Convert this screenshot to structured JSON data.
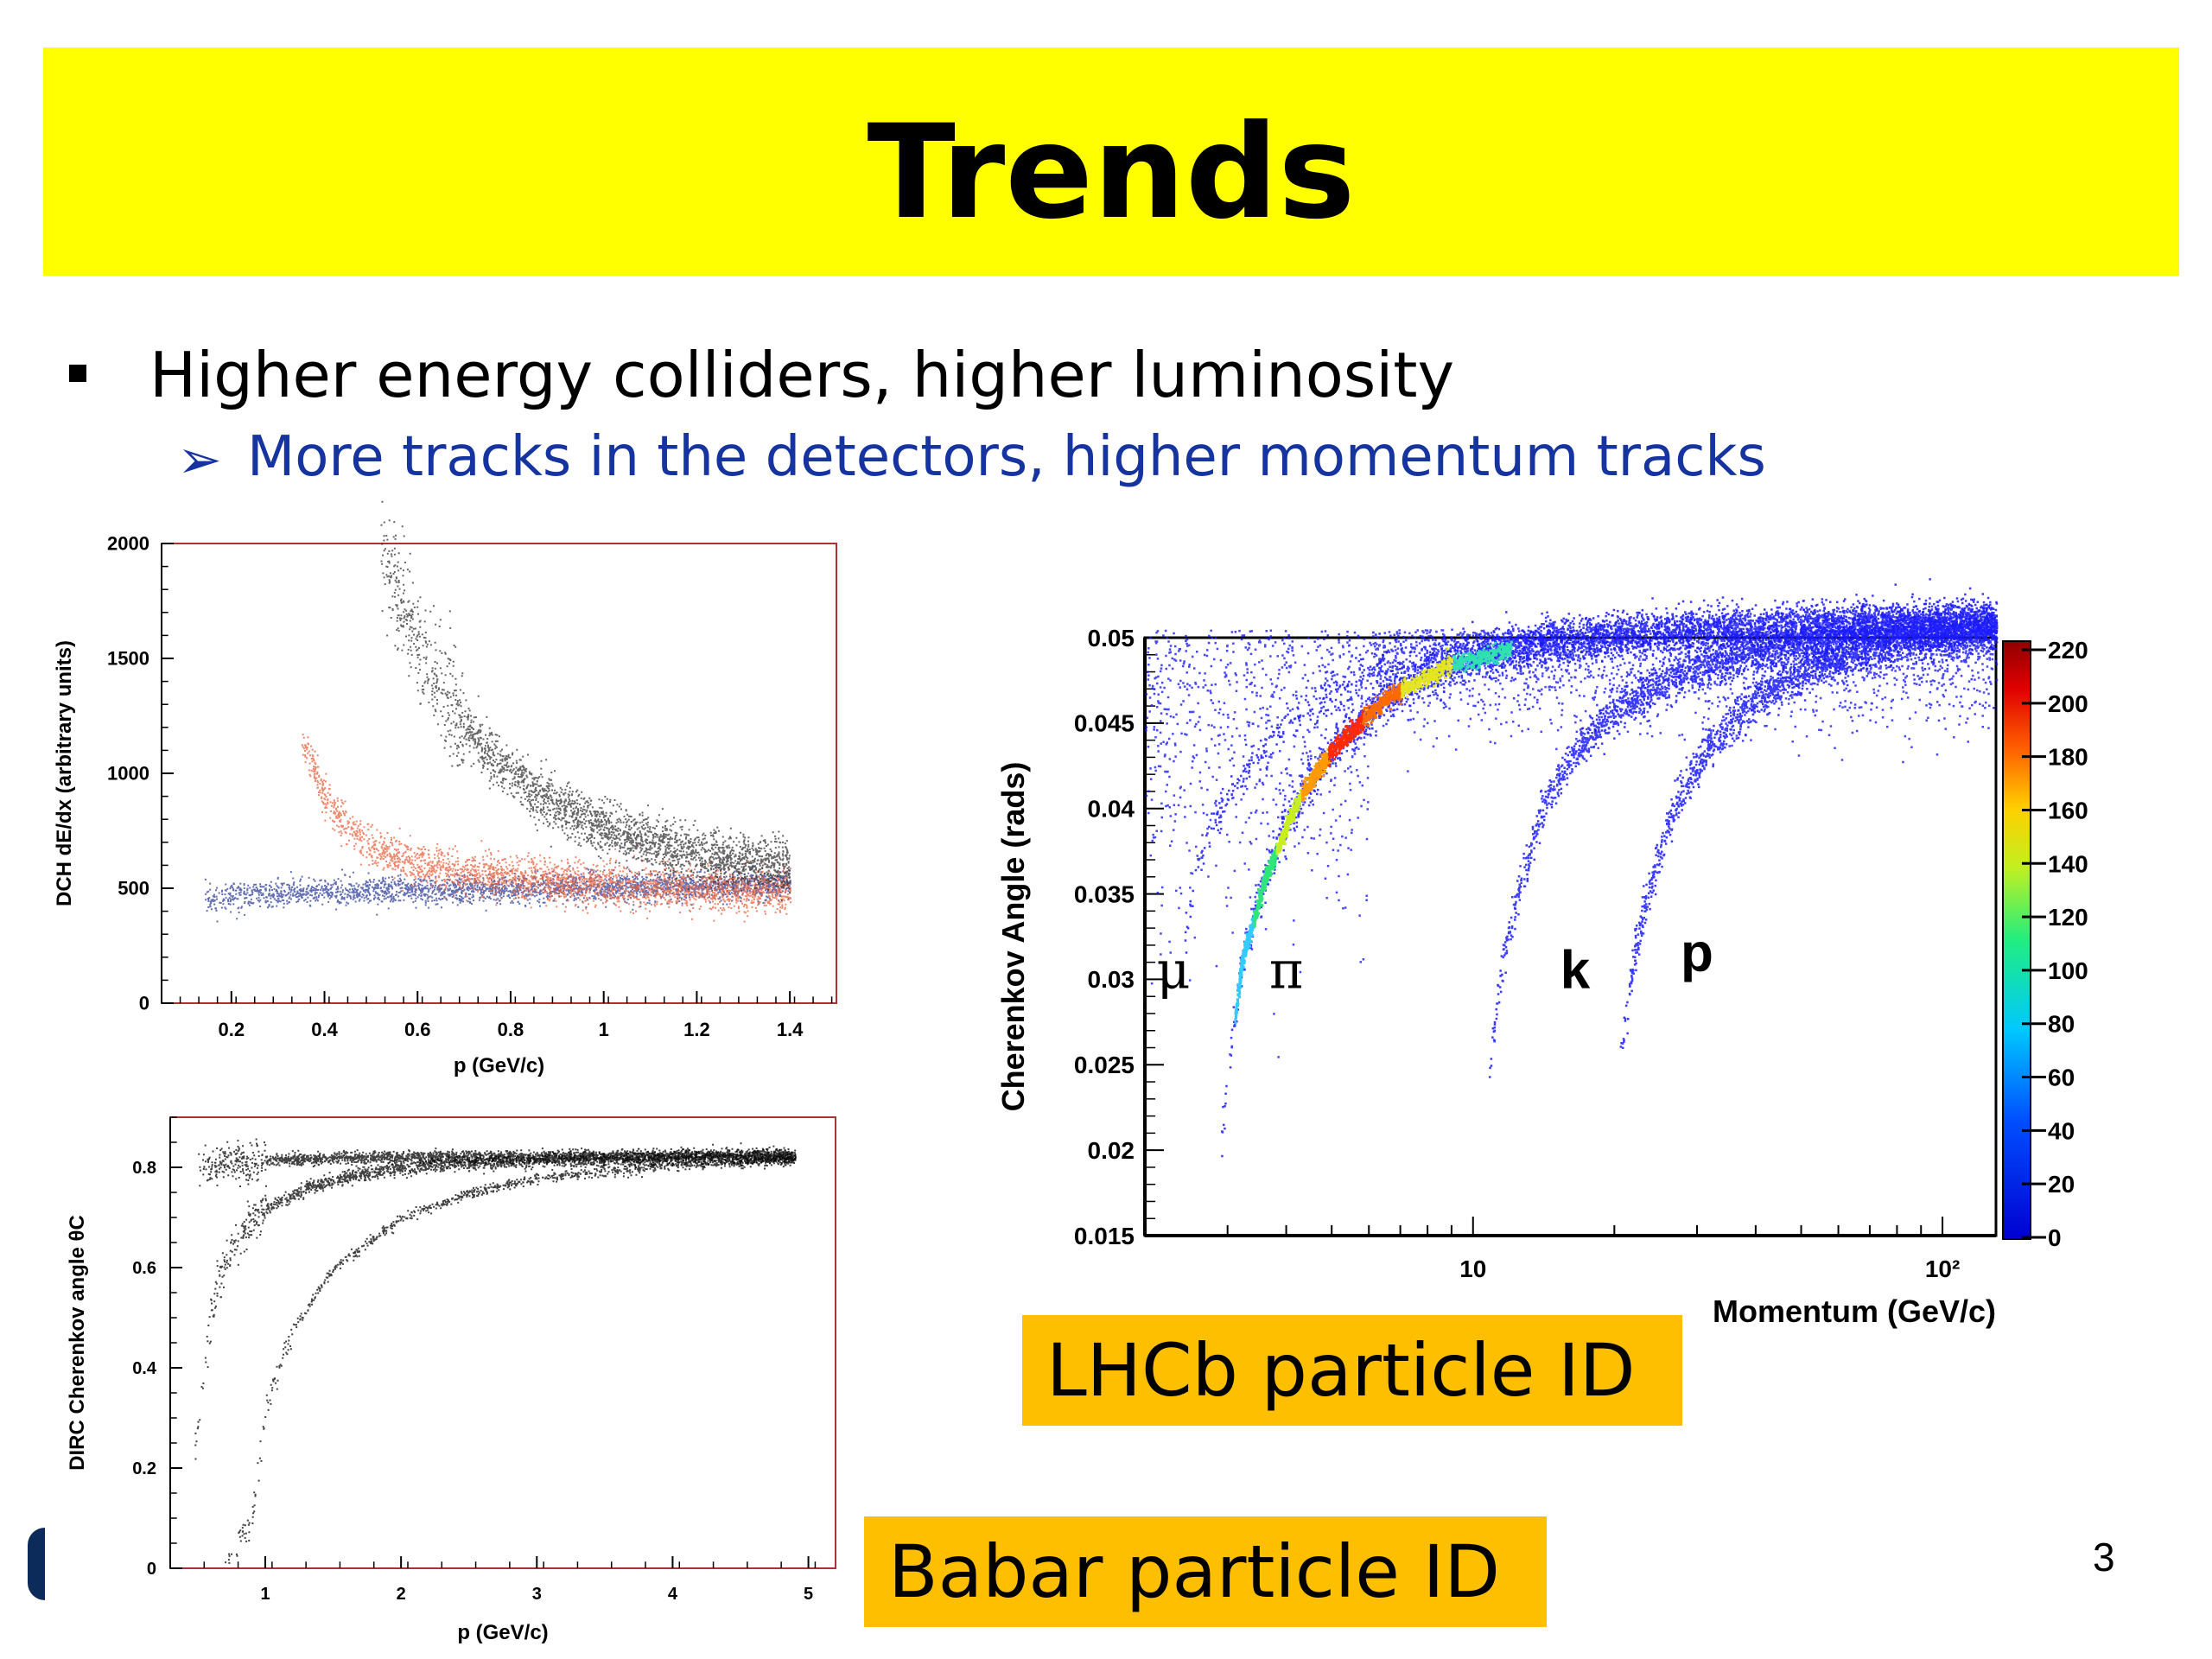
{
  "slide": {
    "title": "Trends",
    "bullet": "Higher energy colliders, higher luminosity",
    "sub_bullet": "More tracks in the detectors, higher momentum tracks",
    "sub_bullet_marker": "➢",
    "page_number": "3",
    "captions": {
      "lhcb": "LHCb particle ID",
      "babar": "Babar particle ID"
    },
    "colors": {
      "title_band": "#ffff00",
      "caption_bg": "#fdbf00",
      "sub_bullet": "#1634a0"
    }
  },
  "chart_data": [
    {
      "id": "dedx",
      "type": "scatter",
      "xlabel": "p (GeV/c)",
      "ylabel": "DCH dE/dx (arbitrary units)",
      "xlim": [
        0.05,
        1.5
      ],
      "ylim": [
        0,
        2000
      ],
      "xticks": [
        0.2,
        0.4,
        0.6,
        0.8,
        1,
        1.2,
        1.4
      ],
      "xtick_labels": [
        "0.2",
        "0.4",
        "0.6",
        "0.8",
        "1",
        "1.2",
        "1.4"
      ],
      "yticks": [
        0,
        500,
        1000,
        1500,
        2000
      ],
      "ytick_labels": [
        "0",
        "500",
        "1000",
        "1500",
        "2000"
      ],
      "series": [
        {
          "color": "#2f3f9a",
          "x": [
            0.15,
            0.2,
            0.3,
            0.4,
            0.6,
            0.8,
            1.0,
            1.2,
            1.4
          ],
          "y": [
            460,
            470,
            480,
            490,
            490,
            500,
            510,
            510,
            520
          ]
        },
        {
          "color": "#e8603c",
          "x": [
            0.35,
            0.4,
            0.45,
            0.5,
            0.6,
            0.7,
            0.8,
            1.0,
            1.2,
            1.4
          ],
          "y": [
            1150,
            900,
            760,
            680,
            610,
            570,
            545,
            515,
            500,
            495
          ]
        },
        {
          "color": "#333333",
          "x": [
            0.52,
            0.55,
            0.6,
            0.7,
            0.8,
            0.9,
            1.0,
            1.2,
            1.4
          ],
          "y": [
            2000,
            1800,
            1550,
            1200,
            1000,
            850,
            760,
            650,
            600
          ]
        }
      ]
    },
    {
      "id": "dirc",
      "type": "scatter",
      "xlabel": "p (GeV/c)",
      "ylabel": "DIRC Cherenkov angle θC",
      "xlim": [
        0.3,
        5.2
      ],
      "ylim": [
        0,
        0.9
      ],
      "xticks": [
        1,
        2,
        3,
        4,
        5
      ],
      "xtick_labels": [
        "1",
        "2",
        "3",
        "4",
        "5"
      ],
      "yticks": [
        0,
        0.2,
        0.4,
        0.6,
        0.8
      ],
      "ytick_labels": [
        "0",
        "0.2",
        "0.4",
        "0.6",
        "0.8"
      ],
      "series": [
        {
          "color": "#000000",
          "x": [
            0.5,
            0.8,
            1,
            1.5,
            2,
            3,
            4,
            4.9
          ],
          "y": [
            0.8,
            0.81,
            0.815,
            0.82,
            0.822,
            0.823,
            0.824,
            0.824
          ]
        },
        {
          "color": "#000000",
          "x": [
            0.5,
            0.6,
            0.7,
            0.8,
            1,
            1.3,
            1.7,
            2.2,
            3,
            4,
            4.9
          ],
          "y": [
            0.27,
            0.52,
            0.62,
            0.67,
            0.72,
            0.76,
            0.79,
            0.805,
            0.815,
            0.82,
            0.823
          ]
        },
        {
          "color": "#000000",
          "x": [
            0.7,
            0.9,
            1.0,
            1.2,
            1.5,
            2.0,
            2.5,
            3.0,
            4.0,
            4.9
          ],
          "y": [
            0.02,
            0.1,
            0.32,
            0.48,
            0.6,
            0.7,
            0.75,
            0.78,
            0.805,
            0.815
          ]
        }
      ]
    },
    {
      "id": "lhcb",
      "type": "heatmap",
      "xlabel": "Momentum (GeV/c)",
      "ylabel": "Cherenkov Angle (rads)",
      "xscale": "log",
      "xlim": [
        2,
        130
      ],
      "ylim": [
        0.015,
        0.05
      ],
      "xticks": [
        10,
        100
      ],
      "xtick_labels": [
        "10",
        "10²"
      ],
      "yticks": [
        0.015,
        0.02,
        0.025,
        0.03,
        0.035,
        0.04,
        0.045,
        0.05
      ],
      "ytick_labels": [
        "0.015",
        "0.02",
        "0.025",
        "0.03",
        "0.035",
        "0.04",
        "0.045",
        "0.05"
      ],
      "colorbar": {
        "min": 0,
        "max": 220,
        "ticks": [
          "0",
          "20",
          "40",
          "60",
          "80",
          "100",
          "120",
          "140",
          "160",
          "180",
          "200",
          "220"
        ]
      },
      "annotations": [
        {
          "text": "μ",
          "x": 2.3,
          "y": 0.0295
        },
        {
          "text": "π",
          "x": 4.0,
          "y": 0.0295
        },
        {
          "text": "k",
          "x": 16.5,
          "y": 0.0295
        },
        {
          "text": "p",
          "x": 30,
          "y": 0.0305
        }
      ],
      "series": [
        {
          "name": "μ",
          "x": [
            2.4,
            2.6,
            3,
            4,
            6,
            10,
            30,
            100
          ],
          "y": [
            0.032,
            0.037,
            0.041,
            0.045,
            0.048,
            0.0495,
            0.0505,
            0.051
          ]
        },
        {
          "name": "π",
          "x": [
            2.9,
            3.2,
            3.6,
            4.2,
            5,
            6.5,
            9,
            14,
            25,
            60,
            130
          ],
          "y": [
            0.021,
            0.031,
            0.036,
            0.0405,
            0.0435,
            0.0465,
            0.0485,
            0.0498,
            0.0505,
            0.0508,
            0.051
          ]
        },
        {
          "name": "k",
          "x": [
            10.8,
            11.5,
            12.5,
            14,
            16,
            20,
            28,
            45,
            80,
            130
          ],
          "y": [
            0.025,
            0.031,
            0.0355,
            0.04,
            0.043,
            0.0458,
            0.048,
            0.0495,
            0.0505,
            0.0508
          ]
        },
        {
          "name": "p",
          "x": [
            20.5,
            22,
            24,
            27,
            32,
            40,
            55,
            80,
            130
          ],
          "y": [
            0.0255,
            0.0315,
            0.036,
            0.0405,
            0.0438,
            0.0465,
            0.0485,
            0.0498,
            0.0505
          ]
        }
      ]
    }
  ]
}
